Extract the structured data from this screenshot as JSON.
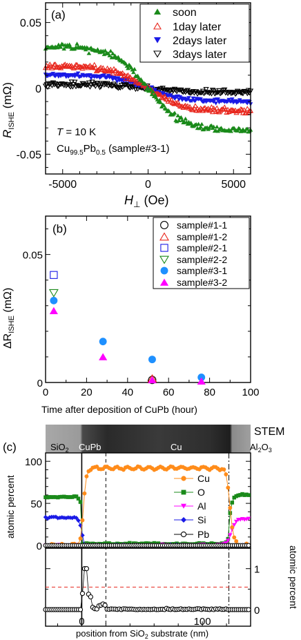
{
  "chart_data": [
    {
      "id": "a",
      "panel_label": "(a)",
      "type": "scatter",
      "xlabel_main": "H",
      "xlabel_sub": "⊥",
      "xlabel_unit": " (Oe)",
      "ylabel_main": "R",
      "ylabel_sub": "ISHE",
      "ylabel_unit": " (mΩ)",
      "xlim": [
        -6000,
        6000
      ],
      "ylim": [
        -0.065,
        0.065
      ],
      "xticks": [
        -5000,
        0,
        5000
      ],
      "xtick_labels": [
        "-5000",
        "0",
        "5000"
      ],
      "yticks": [
        0.05,
        0,
        -0.05
      ],
      "ytick_labels": [
        "0.05",
        "0",
        "-0.05"
      ],
      "annotation_T": "T = 10 K",
      "annotation_sample": "Cu99.5Pb0.5 (sample#3-1)",
      "legend_position": "top-right",
      "series": [
        {
          "name": "soon",
          "marker": "triangle-filled",
          "color": "#1a8a1a",
          "amplitude": 0.032,
          "noise": 0.0035
        },
        {
          "name": "1day later",
          "marker": "triangle-open",
          "color": "#e8261c",
          "amplitude": 0.017,
          "noise": 0.0028
        },
        {
          "name": "2days later",
          "marker": "triangle-down-filled",
          "color": "#1a1ae6",
          "amplitude": 0.01,
          "noise": 0.0025
        },
        {
          "name": "3days later",
          "marker": "triangle-down-open",
          "color": "#000000",
          "amplitude": 0.003,
          "noise": 0.0028
        }
      ]
    },
    {
      "id": "b",
      "panel_label": "(b)",
      "type": "scatter",
      "xlabel": "Time after deposition of CuPb (hour)",
      "ylabel_main": "ΔR",
      "ylabel_sub": "ISHE",
      "ylabel_unit": " (mΩ)",
      "xlim": [
        0,
        100
      ],
      "ylim": [
        0,
        0.065
      ],
      "xticks": [
        0,
        20,
        40,
        60,
        80,
        100
      ],
      "yticks": [
        0,
        0.05
      ],
      "ytick_labels": [
        "0",
        "0.05"
      ],
      "legend_position": "top-right",
      "series": [
        {
          "name": "sample#1-1",
          "marker": "circle-open",
          "color": "#000000",
          "points": [
            [
              52,
              0.001
            ]
          ]
        },
        {
          "name": "sample#1-2",
          "marker": "triangle-open",
          "color": "#e8261c",
          "points": [
            [
              52,
              0.0015
            ]
          ]
        },
        {
          "name": "sample#2-1",
          "marker": "square-open",
          "color": "#1a1ae6",
          "points": [
            [
              4,
              0.042
            ]
          ]
        },
        {
          "name": "sample#2-2",
          "marker": "triangle-down-open",
          "color": "#1a8a1a",
          "points": [
            [
              4,
              0.035
            ]
          ]
        },
        {
          "name": "sample#3-1",
          "marker": "circle-filled",
          "color": "#1e90ff",
          "points": [
            [
              4,
              0.032
            ],
            [
              28,
              0.016
            ],
            [
              52,
              0.009
            ],
            [
              76,
              0.002
            ]
          ]
        },
        {
          "name": "sample#3-2",
          "marker": "triangle-filled",
          "color": "#ff00ff",
          "points": [
            [
              4,
              0.028
            ],
            [
              28,
              0.01
            ],
            [
              52,
              0.001
            ],
            [
              76,
              0.0005
            ]
          ]
        }
      ]
    },
    {
      "id": "c",
      "panel_label": "(c)",
      "type": "line",
      "stem_label": "STEM",
      "region_labels": [
        "SiO2",
        "CuPb",
        "Cu",
        "Al2O3"
      ],
      "xlabel": "position from SiO2 substrate (nm)",
      "ylabel_upper": "atomic percent",
      "ylabel_lower_right": "atomic percent",
      "xlim": [
        -30,
        140
      ],
      "upper_ylim": [
        0,
        110
      ],
      "upper_yticks": [
        0,
        50,
        100
      ],
      "lower_ylim": [
        0,
        1.5
      ],
      "lower_yticks": [
        0,
        1
      ],
      "xticks": [
        0,
        100
      ],
      "cu_pb_boundary_nm": 20,
      "al2o3_boundary_nm": 122,
      "lower_dashed_level": 0.55,
      "legend_position": "center-right",
      "series": [
        {
          "name": "Cu",
          "marker": "circle-filled",
          "color": "#ff8c1a"
        },
        {
          "name": "O",
          "marker": "square-filled",
          "color": "#1a8a1a"
        },
        {
          "name": "Al",
          "marker": "triangle-down-filled",
          "color": "#ff00ff"
        },
        {
          "name": "Si",
          "marker": "diamond-filled",
          "color": "#1a1ae6"
        },
        {
          "name": "Pb",
          "marker": "circle-open",
          "color": "#000000"
        }
      ]
    }
  ]
}
